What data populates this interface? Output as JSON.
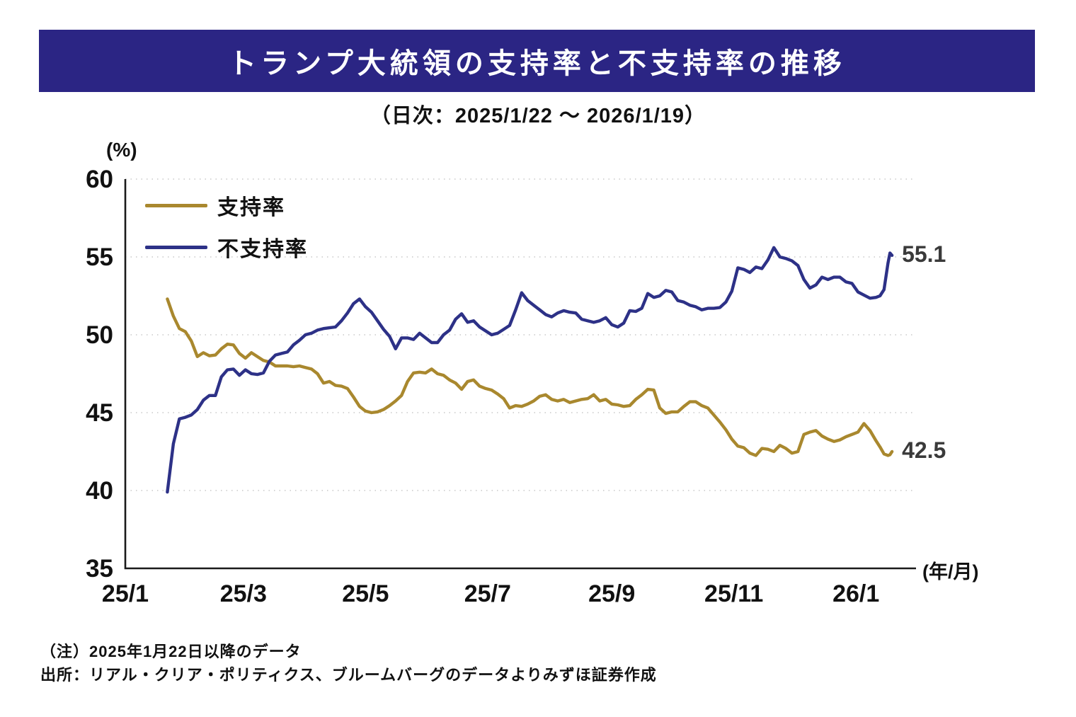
{
  "title": "トランプ大統領の支持率と不支持率の推移",
  "subtitle": "（日次：2025/1/22 ～ 2026/1/19）",
  "colors": {
    "banner_bg": "#2B2584",
    "approval_line": "#A9882E",
    "disapproval_line": "#2D3187",
    "grid": "#c9c9c9",
    "axis": "#1a1a1a",
    "end_label_text": "#3a3a3a"
  },
  "y_axis": {
    "unit_label": "(%)",
    "ticks": [
      35,
      40,
      45,
      50,
      55,
      60
    ]
  },
  "x_axis": {
    "axis_label": "(年/月)",
    "tick_labels": [
      "25/1",
      "25/3",
      "25/5",
      "25/7",
      "25/9",
      "25/11",
      "26/1"
    ],
    "tick_dates": [
      "2025-01-01",
      "2025-03-01",
      "2025-05-01",
      "2025-07-01",
      "2025-09-01",
      "2025-11-01",
      "2026-01-01"
    ]
  },
  "notes": {
    "note1": "（注）2025年1月22日以降のデータ",
    "note2": "出所：リアル・クリア・ポリティクス、ブルームバーグのデータよりみずほ証券作成"
  },
  "chart_data": {
    "type": "line",
    "title": "トランプ大統領の支持率と不支持率の推移",
    "subtitle": "（日次：2025/1/22 ～ 2026/1/19）",
    "ylabel": "(%)",
    "xlabel": "(年/月)",
    "ylim": [
      35,
      60
    ],
    "grid": "dotted-horizontal",
    "legend_position": "top-left-inside",
    "x": [
      "2025-01-22",
      "2025-01-25",
      "2025-01-28",
      "2025-01-31",
      "2025-02-03",
      "2025-02-06",
      "2025-02-09",
      "2025-02-12",
      "2025-02-15",
      "2025-02-18",
      "2025-02-21",
      "2025-02-24",
      "2025-02-27",
      "2025-03-02",
      "2025-03-05",
      "2025-03-08",
      "2025-03-11",
      "2025-03-14",
      "2025-03-17",
      "2025-03-20",
      "2025-03-23",
      "2025-03-26",
      "2025-03-29",
      "2025-04-01",
      "2025-04-04",
      "2025-04-07",
      "2025-04-10",
      "2025-04-13",
      "2025-04-16",
      "2025-04-19",
      "2025-04-22",
      "2025-04-25",
      "2025-04-28",
      "2025-05-01",
      "2025-05-04",
      "2025-05-07",
      "2025-05-10",
      "2025-05-13",
      "2025-05-16",
      "2025-05-19",
      "2025-05-22",
      "2025-05-25",
      "2025-05-28",
      "2025-05-31",
      "2025-06-03",
      "2025-06-06",
      "2025-06-09",
      "2025-06-12",
      "2025-06-15",
      "2025-06-18",
      "2025-06-21",
      "2025-06-24",
      "2025-06-27",
      "2025-06-30",
      "2025-07-03",
      "2025-07-06",
      "2025-07-09",
      "2025-07-12",
      "2025-07-15",
      "2025-07-18",
      "2025-07-21",
      "2025-07-24",
      "2025-07-27",
      "2025-07-30",
      "2025-08-02",
      "2025-08-05",
      "2025-08-08",
      "2025-08-11",
      "2025-08-14",
      "2025-08-17",
      "2025-08-20",
      "2025-08-23",
      "2025-08-26",
      "2025-08-29",
      "2025-09-01",
      "2025-09-04",
      "2025-09-07",
      "2025-09-10",
      "2025-09-13",
      "2025-09-16",
      "2025-09-19",
      "2025-09-22",
      "2025-09-25",
      "2025-09-28",
      "2025-10-01",
      "2025-10-04",
      "2025-10-07",
      "2025-10-10",
      "2025-10-13",
      "2025-10-16",
      "2025-10-19",
      "2025-10-22",
      "2025-10-25",
      "2025-10-28",
      "2025-10-31",
      "2025-11-03",
      "2025-11-06",
      "2025-11-09",
      "2025-11-12",
      "2025-11-15",
      "2025-11-18",
      "2025-11-21",
      "2025-11-24",
      "2025-11-27",
      "2025-11-30",
      "2025-12-03",
      "2025-12-06",
      "2025-12-09",
      "2025-12-12",
      "2025-12-15",
      "2025-12-18",
      "2025-12-21",
      "2025-12-24",
      "2025-12-27",
      "2025-12-30",
      "2026-01-02",
      "2026-01-05",
      "2026-01-08",
      "2026-01-11",
      "2026-01-13",
      "2026-01-15",
      "2026-01-17",
      "2026-01-18",
      "2026-01-19"
    ],
    "series": [
      {
        "name": "支持率",
        "color": "#A9882E",
        "end_label": "42.5",
        "values": [
          52.3,
          51.2,
          50.4,
          50.2,
          49.6,
          48.6,
          48.85,
          48.65,
          48.7,
          49.1,
          49.4,
          49.35,
          48.8,
          48.5,
          48.85,
          48.6,
          48.35,
          48.25,
          48.0,
          48.0,
          48.0,
          47.95,
          48.0,
          47.9,
          47.8,
          47.5,
          46.9,
          47.0,
          46.75,
          46.7,
          46.55,
          46.0,
          45.4,
          45.1,
          45.0,
          45.05,
          45.2,
          45.45,
          45.75,
          46.1,
          47.0,
          47.55,
          47.6,
          47.55,
          47.8,
          47.5,
          47.4,
          47.1,
          46.9,
          46.5,
          47.0,
          47.1,
          46.7,
          46.55,
          46.45,
          46.2,
          45.9,
          45.3,
          45.45,
          45.4,
          45.55,
          45.75,
          46.05,
          46.15,
          45.85,
          45.75,
          45.85,
          45.65,
          45.75,
          45.85,
          45.9,
          46.15,
          45.75,
          45.85,
          45.55,
          45.5,
          45.4,
          45.45,
          45.85,
          46.15,
          46.5,
          46.45,
          45.3,
          44.95,
          45.05,
          45.05,
          45.4,
          45.7,
          45.7,
          45.45,
          45.3,
          44.85,
          44.4,
          43.9,
          43.3,
          42.85,
          42.75,
          42.4,
          42.25,
          42.7,
          42.65,
          42.5,
          42.9,
          42.7,
          42.4,
          42.5,
          43.6,
          43.75,
          43.85,
          43.5,
          43.3,
          43.15,
          43.25,
          43.45,
          43.6,
          43.75,
          44.3,
          43.85,
          43.2,
          42.8,
          42.35,
          42.25,
          42.3,
          42.5
        ]
      },
      {
        "name": "不支持率",
        "color": "#2D3187",
        "end_label": "55.1",
        "values": [
          39.9,
          43.0,
          44.6,
          44.7,
          44.85,
          45.2,
          45.8,
          46.1,
          46.1,
          47.3,
          47.75,
          47.8,
          47.4,
          47.75,
          47.5,
          47.45,
          47.55,
          48.3,
          48.7,
          48.8,
          48.9,
          49.35,
          49.65,
          50.0,
          50.1,
          50.3,
          50.4,
          50.45,
          50.5,
          50.9,
          51.4,
          52.0,
          52.3,
          51.8,
          51.45,
          50.9,
          50.35,
          49.9,
          49.1,
          49.8,
          49.8,
          49.7,
          50.1,
          49.8,
          49.5,
          49.5,
          50.0,
          50.3,
          51.0,
          51.35,
          50.8,
          50.9,
          50.5,
          50.25,
          50.0,
          50.1,
          50.35,
          50.6,
          51.6,
          52.7,
          52.2,
          51.9,
          51.6,
          51.3,
          51.15,
          51.4,
          51.55,
          51.45,
          51.4,
          51.0,
          50.9,
          50.8,
          50.9,
          51.1,
          50.65,
          50.5,
          50.75,
          51.55,
          51.5,
          51.7,
          52.65,
          52.4,
          52.5,
          52.85,
          52.75,
          52.2,
          52.1,
          51.9,
          51.8,
          51.6,
          51.7,
          51.7,
          51.75,
          52.1,
          52.8,
          54.3,
          54.2,
          54.0,
          54.35,
          54.25,
          54.8,
          55.6,
          55.0,
          54.9,
          54.75,
          54.45,
          53.55,
          53.0,
          53.2,
          53.7,
          53.55,
          53.7,
          53.7,
          53.4,
          53.3,
          52.75,
          52.55,
          52.35,
          52.4,
          52.5,
          52.9,
          54.6,
          55.25,
          55.1
        ]
      }
    ]
  }
}
